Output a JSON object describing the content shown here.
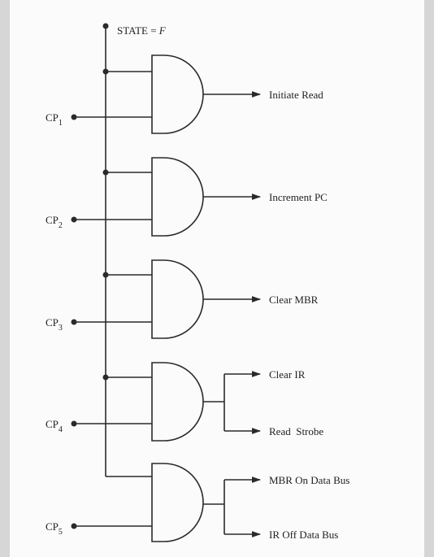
{
  "header": {
    "state_label": "STATE = ",
    "state_value": "F"
  },
  "gates": [
    {
      "clock": "CP",
      "clock_sub": "1",
      "outputs": [
        "Initiate Read"
      ]
    },
    {
      "clock": "CP",
      "clock_sub": "2",
      "outputs": [
        "Increment PC"
      ]
    },
    {
      "clock": "CP",
      "clock_sub": "3",
      "outputs": [
        "Clear MBR"
      ]
    },
    {
      "clock": "CP",
      "clock_sub": "4",
      "outputs": [
        "Clear IR",
        "Read  Strobe"
      ]
    },
    {
      "clock": "CP",
      "clock_sub": "5",
      "outputs": [
        "MBR On Data Bus",
        "IR Off Data Bus"
      ]
    }
  ],
  "colors": {
    "ink": "#2a2a2a",
    "paper": "#fbfbfb",
    "border": "#d6d6d6"
  }
}
